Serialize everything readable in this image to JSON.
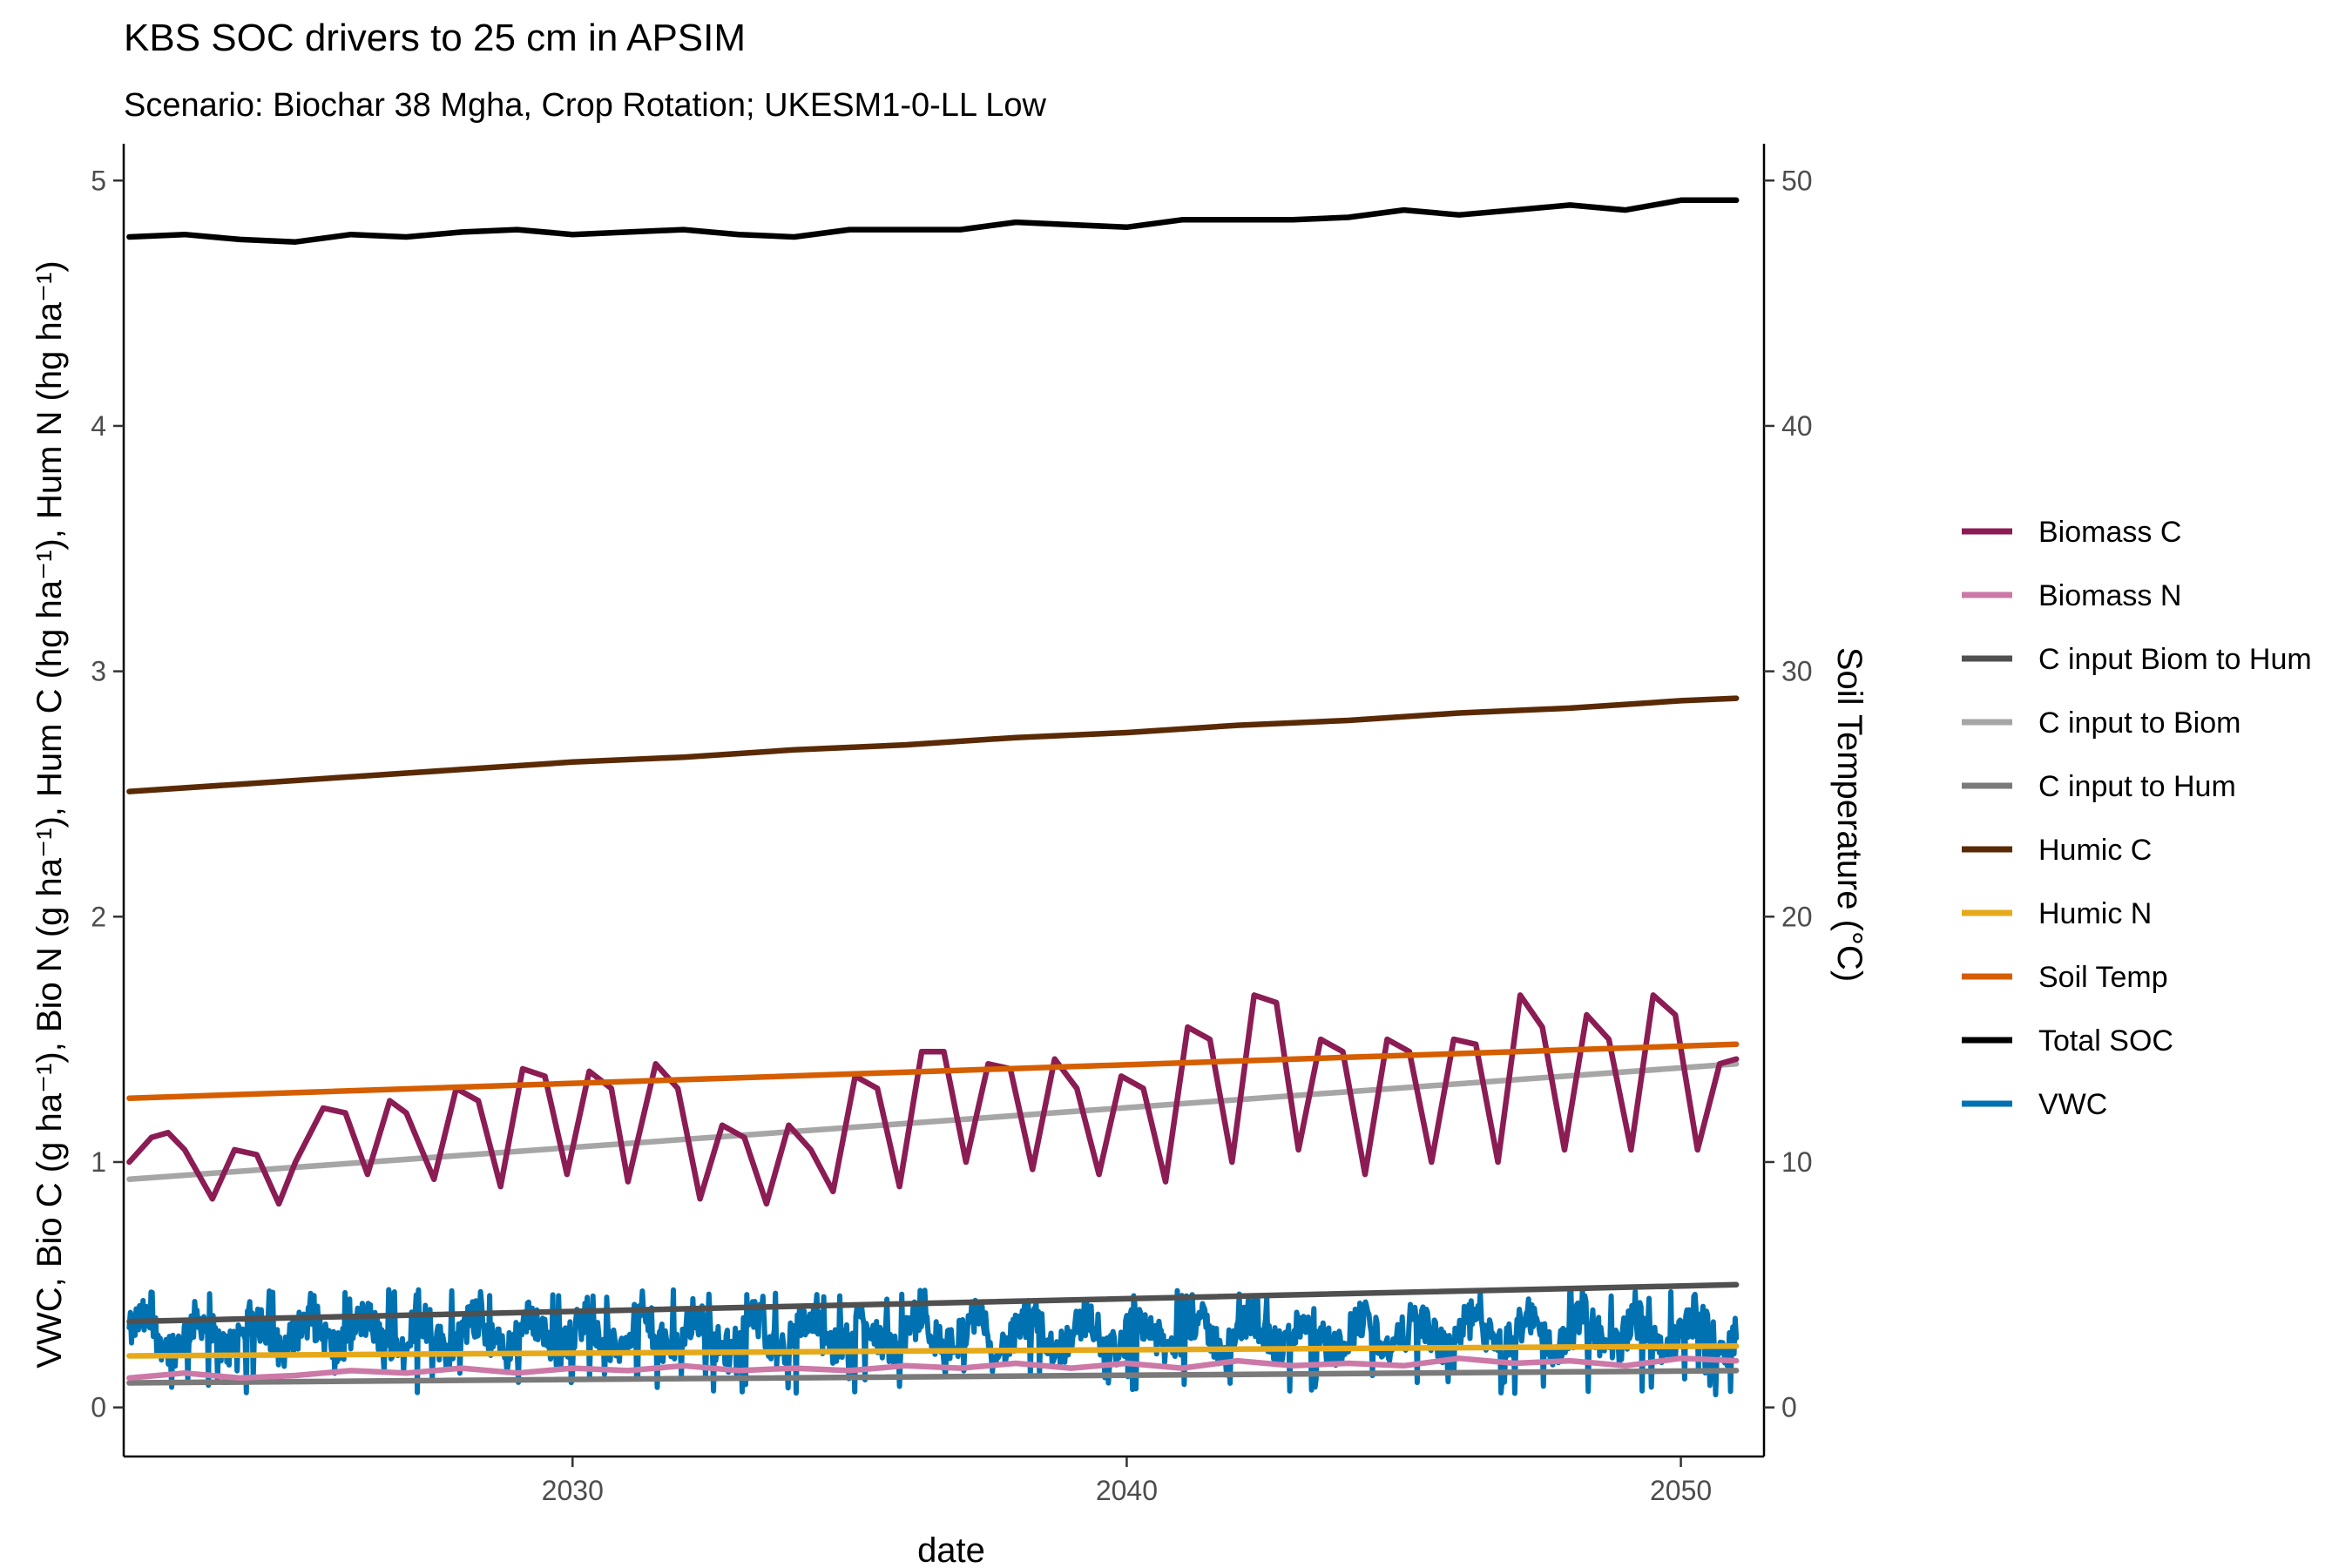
{
  "chart_data": {
    "type": "line",
    "title": "KBS SOC drivers to 25 cm in APSIM",
    "subtitle": "Scenario: Biochar 38 Mgha, Crop Rotation; UKESM1-0-LL Low",
    "xlabel": "date",
    "ylabel_left": "VWC, Bio C (g ha⁻¹), Bio N (g ha⁻¹), Hum C (hg ha⁻¹), Hum N (hg ha⁻¹)",
    "ylabel_right": "Soil Temperature (°C)",
    "xlim": [
      2021.9,
      2051.5
    ],
    "ylim_left": [
      -0.2,
      5.15
    ],
    "ylim_right": [
      -2,
      51.5
    ],
    "x_ticks": [
      2030,
      2040,
      2050
    ],
    "y_ticks_left": [
      0,
      1,
      2,
      3,
      4,
      5
    ],
    "y_ticks_right": [
      0,
      10,
      20,
      30,
      40,
      50
    ],
    "x_start": 2022,
    "x_end": 2051,
    "grid": false,
    "legend_position": "right",
    "series": [
      {
        "name": "Biomass C",
        "color": "#8b1c54",
        "axis": "left",
        "x": [
          2022.0,
          2022.4,
          2022.7,
          2023.0,
          2023.5,
          2023.9,
          2024.3,
          2024.7,
          2025.0,
          2025.5,
          2025.9,
          2026.3,
          2026.7,
          2027.0,
          2027.5,
          2027.9,
          2028.3,
          2028.7,
          2029.1,
          2029.5,
          2029.9,
          2030.3,
          2030.7,
          2031.0,
          2031.5,
          2031.9,
          2032.3,
          2032.7,
          2033.1,
          2033.5,
          2033.9,
          2034.3,
          2034.7,
          2035.1,
          2035.5,
          2035.9,
          2036.3,
          2036.7,
          2037.1,
          2037.5,
          2037.9,
          2038.3,
          2038.7,
          2039.1,
          2039.5,
          2039.9,
          2040.3,
          2040.7,
          2041.1,
          2041.5,
          2041.9,
          2042.3,
          2042.7,
          2043.1,
          2043.5,
          2043.9,
          2044.3,
          2044.7,
          2045.1,
          2045.5,
          2045.9,
          2046.3,
          2046.7,
          2047.1,
          2047.5,
          2047.9,
          2048.3,
          2048.7,
          2049.1,
          2049.5,
          2049.9,
          2050.3,
          2050.7,
          2051.0
        ],
        "y": [
          1.0,
          1.1,
          1.12,
          1.05,
          0.85,
          1.05,
          1.03,
          0.83,
          1.0,
          1.22,
          1.2,
          0.95,
          1.25,
          1.2,
          0.93,
          1.3,
          1.25,
          0.9,
          1.38,
          1.35,
          0.95,
          1.37,
          1.3,
          0.92,
          1.4,
          1.3,
          0.85,
          1.15,
          1.1,
          0.83,
          1.15,
          1.05,
          0.88,
          1.35,
          1.3,
          0.9,
          1.45,
          1.45,
          1.0,
          1.4,
          1.38,
          0.97,
          1.42,
          1.3,
          0.95,
          1.35,
          1.3,
          0.92,
          1.55,
          1.5,
          1.0,
          1.68,
          1.65,
          1.05,
          1.5,
          1.45,
          0.95,
          1.5,
          1.45,
          1.0,
          1.5,
          1.48,
          1.0,
          1.68,
          1.55,
          1.05,
          1.6,
          1.5,
          1.05,
          1.68,
          1.6,
          1.05,
          1.4,
          1.42
        ]
      },
      {
        "name": "Biomass N",
        "color": "#cc79a7",
        "axis": "left",
        "x": [
          2022.0,
          2023.0,
          2024.0,
          2025.0,
          2026.0,
          2027.0,
          2028.0,
          2029.0,
          2030.0,
          2031.0,
          2032.0,
          2033.0,
          2034.0,
          2035.0,
          2036.0,
          2037.0,
          2038.0,
          2039.0,
          2040.0,
          2041.0,
          2042.0,
          2043.0,
          2044.0,
          2045.0,
          2046.0,
          2047.0,
          2048.0,
          2049.0,
          2050.0,
          2051.0
        ],
        "y": [
          0.12,
          0.14,
          0.12,
          0.13,
          0.15,
          0.14,
          0.16,
          0.14,
          0.16,
          0.15,
          0.17,
          0.15,
          0.16,
          0.15,
          0.17,
          0.16,
          0.18,
          0.16,
          0.18,
          0.16,
          0.19,
          0.17,
          0.18,
          0.17,
          0.2,
          0.18,
          0.19,
          0.17,
          0.2,
          0.19
        ]
      },
      {
        "name": "C input Biom to Hum",
        "color": "#505050",
        "axis": "left",
        "x": [
          2022.0,
          2051.0
        ],
        "y": [
          0.35,
          0.5
        ]
      },
      {
        "name": "C input to Biom",
        "color": "#a6a6a6",
        "axis": "left",
        "x": [
          2022.0,
          2051.0
        ],
        "y": [
          0.93,
          1.4
        ]
      },
      {
        "name": "C input to Hum",
        "color": "#7a7a7a",
        "axis": "left",
        "x": [
          2022.0,
          2051.0
        ],
        "y": [
          0.1,
          0.15
        ]
      },
      {
        "name": "Humic C",
        "color": "#5a2a06",
        "axis": "left",
        "x": [
          2022.0,
          2024.0,
          2026.0,
          2028.0,
          2030.0,
          2032.0,
          2034.0,
          2036.0,
          2038.0,
          2040.0,
          2042.0,
          2044.0,
          2046.0,
          2048.0,
          2050.0,
          2051.0
        ],
        "y": [
          2.51,
          2.54,
          2.57,
          2.6,
          2.63,
          2.65,
          2.68,
          2.7,
          2.73,
          2.75,
          2.78,
          2.8,
          2.83,
          2.85,
          2.88,
          2.89
        ]
      },
      {
        "name": "Humic N",
        "color": "#e6a91a",
        "axis": "left",
        "x": [
          2022.0,
          2051.0
        ],
        "y": [
          0.21,
          0.25
        ]
      },
      {
        "name": "Soil Temp",
        "color": "#d55e00",
        "axis": "right",
        "x": [
          2022.0,
          2051.0
        ],
        "y": [
          12.6,
          14.8
        ]
      },
      {
        "name": "Total SOC",
        "color": "#000000",
        "axis": "left",
        "x": [
          2022.0,
          2023.0,
          2024.0,
          2025.0,
          2026.0,
          2027.0,
          2028.0,
          2029.0,
          2030.0,
          2031.0,
          2032.0,
          2033.0,
          2034.0,
          2035.0,
          2036.0,
          2037.0,
          2038.0,
          2039.0,
          2040.0,
          2041.0,
          2042.0,
          2043.0,
          2044.0,
          2045.0,
          2046.0,
          2047.0,
          2048.0,
          2049.0,
          2050.0,
          2051.0
        ],
        "y": [
          4.77,
          4.78,
          4.76,
          4.75,
          4.78,
          4.77,
          4.79,
          4.8,
          4.78,
          4.79,
          4.8,
          4.78,
          4.77,
          4.8,
          4.8,
          4.8,
          4.83,
          4.82,
          4.81,
          4.84,
          4.84,
          4.84,
          4.85,
          4.88,
          4.86,
          4.88,
          4.9,
          4.88,
          4.92,
          4.92
        ]
      },
      {
        "name": "VWC",
        "color": "#0072b2",
        "axis": "left",
        "x_range": [
          2022.0,
          2051.0
        ],
        "y_min": 0.05,
        "y_max": 0.48,
        "y_mean": 0.3
      }
    ]
  }
}
